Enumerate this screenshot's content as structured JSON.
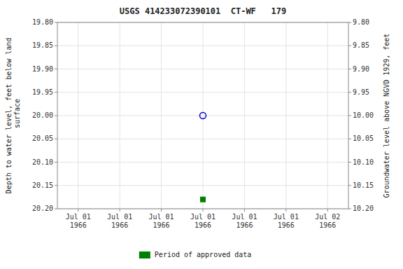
{
  "chart_data": {
    "type": "scatter",
    "title": "USGS 414233072390101  CT-WF   179",
    "ylabel": "Depth to water level, feet below land\n surface",
    "y2label": "Groundwater level above NGVD 1929, feet",
    "categories": [
      "Jul 01\n1966",
      "Jul 01\n1966",
      "Jul 01\n1966",
      "Jul 01\n1966",
      "Jul 01\n1966",
      "Jul 01\n1966",
      "Jul 02\n1966"
    ],
    "series": [
      {
        "color": "#0000cc",
        "marker": "open-circle",
        "values": [
          null,
          null,
          null,
          20.0,
          null,
          null,
          null
        ]
      },
      {
        "name": "Period of approved data",
        "color": "#008000",
        "marker": "square",
        "values": [
          null,
          null,
          null,
          20.18,
          null,
          null,
          null
        ]
      }
    ],
    "ylim": [
      20.2,
      19.8
    ],
    "yticks": [
      {
        "value": 19.8,
        "label": "19.80"
      },
      {
        "value": 19.85,
        "label": "19.85"
      },
      {
        "value": 19.9,
        "label": "19.90"
      },
      {
        "value": 19.95,
        "label": "19.95"
      },
      {
        "value": 20.0,
        "label": "20.00"
      },
      {
        "value": 20.05,
        "label": "20.05"
      },
      {
        "value": 20.1,
        "label": "20.10"
      },
      {
        "value": 20.15,
        "label": "20.15"
      },
      {
        "value": 20.2,
        "label": "20.20"
      }
    ],
    "y2lim": [
      10.2,
      9.8
    ],
    "y2ticks": [
      {
        "value": 10.2,
        "label": "10.20"
      },
      {
        "value": 10.15,
        "label": "10.15"
      },
      {
        "value": 10.1,
        "label": "10.10"
      },
      {
        "value": 10.05,
        "label": "10.05"
      },
      {
        "value": 10.0,
        "label": "10.00"
      },
      {
        "value": 9.95,
        "label": "9.95"
      },
      {
        "value": 9.9,
        "label": "9.90"
      },
      {
        "value": 9.85,
        "label": "9.85"
      },
      {
        "value": 9.8,
        "label": "9.80"
      }
    ],
    "grid": true,
    "legend": "bottom"
  }
}
